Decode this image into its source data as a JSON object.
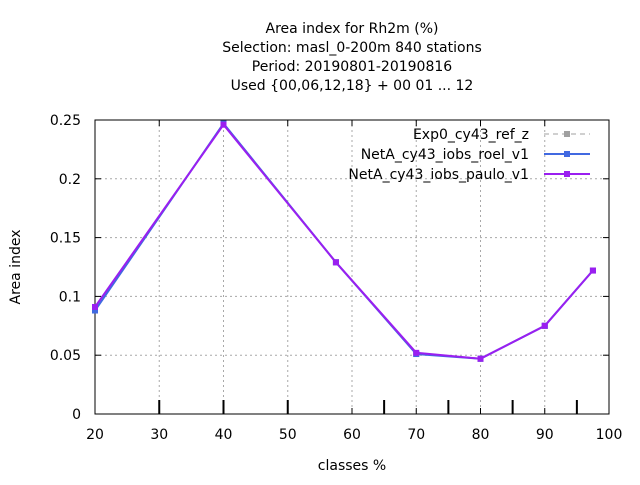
{
  "chart_data": {
    "type": "line",
    "title_lines": [
      "Area index  for Rh2m (%)",
      "Selection: masl_0-200m    840 stations",
      "Period: 20190801-20190816",
      "Used {00,06,12,18} + 00 01 ... 12"
    ],
    "xlabel": "classes %",
    "ylabel": "Area index",
    "xlim": [
      20,
      100
    ],
    "ylim": [
      0,
      0.25
    ],
    "xticks": [
      20,
      30,
      40,
      50,
      60,
      70,
      80,
      90,
      100
    ],
    "xtick_labels": [
      "20",
      "30",
      "40",
      "50",
      "60",
      "70",
      "80",
      "90",
      "100"
    ],
    "yticks": [
      0,
      0.05,
      0.1,
      0.15,
      0.2,
      0.25
    ],
    "ytick_labels": [
      "0",
      "0.05",
      "0.1",
      "0.15",
      "0.2",
      "0.25"
    ],
    "class_marks": [
      30,
      40,
      50,
      65,
      75,
      85,
      95
    ],
    "grid": true,
    "legend_position": "top-right",
    "x": [
      20,
      40,
      57.5,
      70,
      80,
      90,
      97.5
    ],
    "series": [
      {
        "name": "Exp0_cy43_ref_z",
        "color": "#a0a0a0",
        "dashed": true,
        "values": [
          0.088,
          0.247,
          0.129,
          0.051,
          0.047,
          0.075,
          0.122
        ]
      },
      {
        "name": "NetA_cy43_iobs_roel_v1",
        "color": "#4169e1",
        "dashed": false,
        "values": [
          0.088,
          0.247,
          0.129,
          0.051,
          0.047,
          0.075,
          0.122
        ]
      },
      {
        "name": "NetA_cy43_iobs_paulo_v1",
        "color": "#9a1ff0",
        "dashed": false,
        "values": [
          0.091,
          0.246,
          0.129,
          0.052,
          0.047,
          0.075,
          0.122
        ]
      }
    ]
  }
}
